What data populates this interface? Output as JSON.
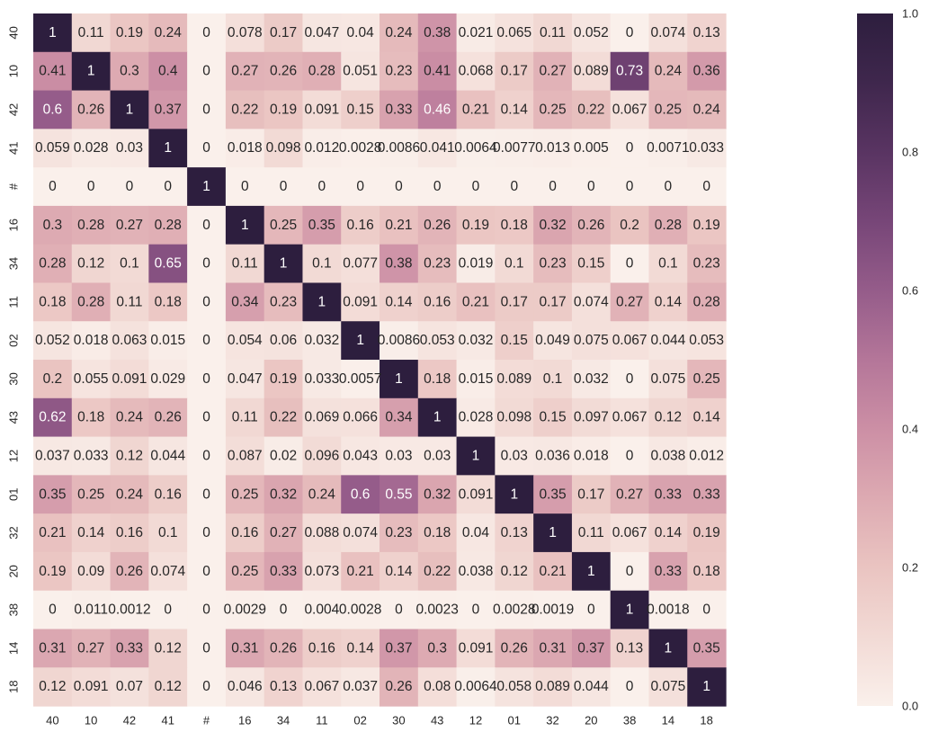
{
  "chart_data": {
    "type": "heatmap",
    "title": "",
    "xlabel": "",
    "ylabel": "",
    "x_categories": [
      "40",
      "10",
      "42",
      "41",
      "#",
      "16",
      "34",
      "11",
      "02",
      "30",
      "43",
      "12",
      "01",
      "32",
      "20",
      "38",
      "14",
      "18"
    ],
    "y_categories": [
      "40",
      "10",
      "42",
      "41",
      "#",
      "16",
      "34",
      "11",
      "02",
      "30",
      "43",
      "12",
      "01",
      "32",
      "20",
      "38",
      "14",
      "18"
    ],
    "values": [
      [
        1,
        0.11,
        0.19,
        0.24,
        0,
        0.078,
        0.17,
        0.047,
        0.04,
        0.24,
        0.38,
        0.021,
        0.065,
        0.11,
        0.052,
        0,
        0.074,
        0.13
      ],
      [
        0.41,
        1,
        0.3,
        0.4,
        0,
        0.27,
        0.26,
        0.28,
        0.051,
        0.23,
        0.41,
        0.068,
        0.17,
        0.27,
        0.089,
        0.73,
        0.24,
        0.36
      ],
      [
        0.6,
        0.26,
        1,
        0.37,
        0,
        0.22,
        0.19,
        0.091,
        0.15,
        0.33,
        0.46,
        0.21,
        0.14,
        0.25,
        0.22,
        0.067,
        0.25,
        0.24
      ],
      [
        0.059,
        0.028,
        0.03,
        1,
        0,
        0.018,
        0.098,
        0.012,
        0.0028,
        0.0086,
        0.041,
        0.0064,
        0.0077,
        0.013,
        0.005,
        0,
        0.0071,
        0.033
      ],
      [
        0,
        0,
        0,
        0,
        1,
        0,
        0,
        0,
        0,
        0,
        0,
        0,
        0,
        0,
        0,
        0,
        0,
        0
      ],
      [
        0.3,
        0.28,
        0.27,
        0.28,
        0,
        1,
        0.25,
        0.35,
        0.16,
        0.21,
        0.26,
        0.19,
        0.18,
        0.32,
        0.26,
        0.2,
        0.28,
        0.19
      ],
      [
        0.28,
        0.12,
        0.1,
        0.65,
        0,
        0.11,
        1,
        0.1,
        0.077,
        0.38,
        0.23,
        0.019,
        0.1,
        0.23,
        0.15,
        0,
        0.1,
        0.23
      ],
      [
        0.18,
        0.28,
        0.11,
        0.18,
        0,
        0.34,
        0.23,
        1,
        0.091,
        0.14,
        0.16,
        0.21,
        0.17,
        0.17,
        0.074,
        0.27,
        0.14,
        0.28
      ],
      [
        0.052,
        0.018,
        0.063,
        0.015,
        0,
        0.054,
        0.06,
        0.032,
        1,
        0.0086,
        0.053,
        0.032,
        0.15,
        0.049,
        0.075,
        0.067,
        0.044,
        0.053
      ],
      [
        0.2,
        0.055,
        0.091,
        0.029,
        0,
        0.047,
        0.19,
        0.033,
        0.0057,
        1,
        0.18,
        0.015,
        0.089,
        0.1,
        0.032,
        0,
        0.075,
        0.25
      ],
      [
        0.62,
        0.18,
        0.24,
        0.26,
        0,
        0.11,
        0.22,
        0.069,
        0.066,
        0.34,
        1,
        0.028,
        0.098,
        0.15,
        0.097,
        0.067,
        0.12,
        0.14
      ],
      [
        0.037,
        0.033,
        0.12,
        0.044,
        0,
        0.087,
        0.02,
        0.096,
        0.043,
        0.03,
        0.03,
        1,
        0.03,
        0.036,
        0.018,
        0,
        0.038,
        0.012
      ],
      [
        0.35,
        0.25,
        0.24,
        0.16,
        0,
        0.25,
        0.32,
        0.24,
        0.6,
        0.55,
        0.32,
        0.091,
        1,
        0.35,
        0.17,
        0.27,
        0.33,
        0.33
      ],
      [
        0.21,
        0.14,
        0.16,
        0.1,
        0,
        0.16,
        0.27,
        0.088,
        0.074,
        0.23,
        0.18,
        0.04,
        0.13,
        1,
        0.11,
        0.067,
        0.14,
        0.19
      ],
      [
        0.19,
        0.09,
        0.26,
        0.074,
        0,
        0.25,
        0.33,
        0.073,
        0.21,
        0.14,
        0.22,
        0.038,
        0.12,
        0.21,
        1,
        0,
        0.33,
        0.18
      ],
      [
        0,
        0.011,
        0.0012,
        0,
        0,
        0.0029,
        0,
        0.004,
        0.0028,
        0,
        0.0023,
        0,
        0.0028,
        0.0019,
        0,
        1,
        0.0018,
        0
      ],
      [
        0.31,
        0.27,
        0.33,
        0.12,
        0,
        0.31,
        0.26,
        0.16,
        0.14,
        0.37,
        0.3,
        0.091,
        0.26,
        0.31,
        0.37,
        0.13,
        1,
        0.35
      ],
      [
        0.12,
        0.091,
        0.07,
        0.12,
        0,
        0.046,
        0.13,
        0.067,
        0.037,
        0.26,
        0.08,
        0.0064,
        0.058,
        0.089,
        0.044,
        0,
        0.075,
        1
      ]
    ],
    "value_range": [
      0,
      1
    ],
    "colorbar": {
      "ticks": [
        0.0,
        0.2,
        0.4,
        0.6,
        0.8,
        1.0
      ],
      "tick_labels": [
        "0.0",
        "0.2",
        "0.4",
        "0.6",
        "0.8",
        "1.0"
      ]
    },
    "colormap": {
      "name": "cubehelix-rose",
      "low_color": "#faf0eb",
      "mid_color": "#c88ba1",
      "high_color": "#2d1e3e"
    },
    "annotated": true,
    "grid": false,
    "legend": "colorbar-right"
  }
}
